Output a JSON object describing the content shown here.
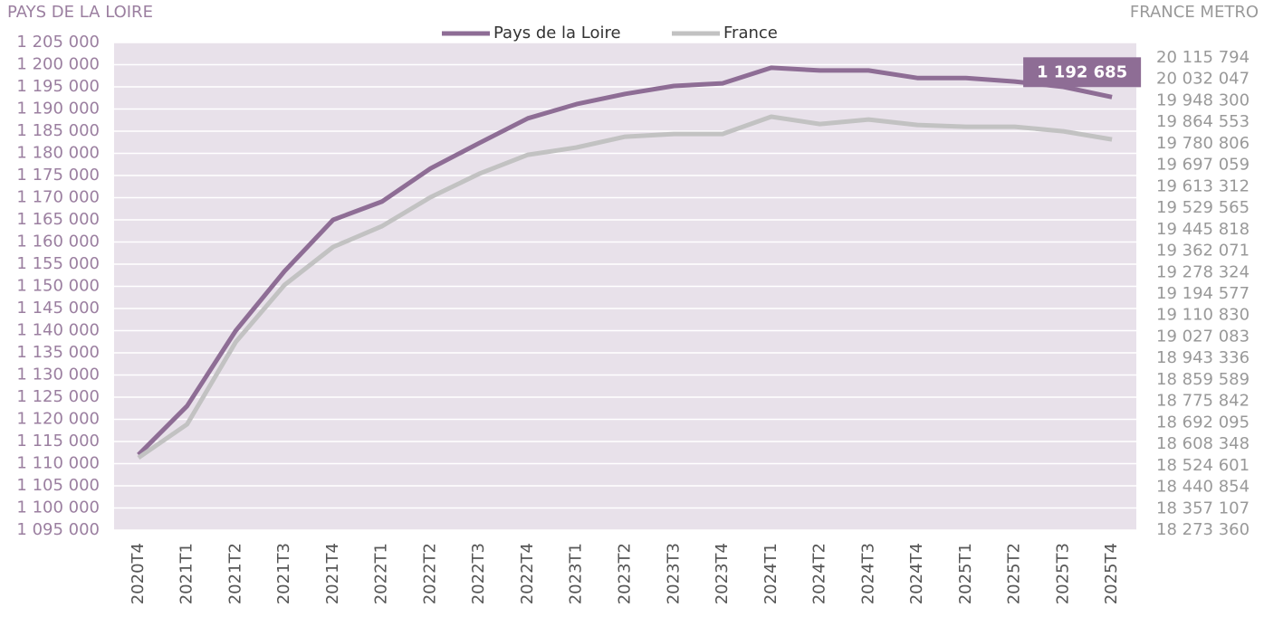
{
  "chart_data": {
    "type": "line",
    "y_label": "PAYS DE LA LOIRE",
    "y2_label": "FRANCE METRO",
    "categories": [
      "2020T4",
      "2021T1",
      "2021T2",
      "2021T3",
      "2021T4",
      "2022T1",
      "2022T2",
      "2022T3",
      "2022T4",
      "2023T1",
      "2023T2",
      "2023T3",
      "2023T4",
      "2024T1",
      "2024T2",
      "2024T3",
      "2024T4",
      "2025T1",
      "2025T2",
      "2025T3",
      "2025T4"
    ],
    "series": [
      {
        "name": "Pays de la Loire",
        "color": "#8e6d95",
        "axis": "y",
        "values": [
          1112000,
          1123000,
          1140000,
          1153400,
          1165000,
          1169100,
          1176600,
          1182300,
          1187900,
          1191100,
          1193400,
          1195200,
          1195800,
          1199300,
          1198700,
          1198700,
          1197000,
          1197000,
          1196200,
          1195000,
          1192685
        ],
        "value_labels": [
          null,
          null,
          null,
          null,
          null,
          null,
          null,
          null,
          null,
          null,
          null,
          null,
          null,
          null,
          null,
          null,
          null,
          null,
          null,
          null,
          "1 192 685"
        ]
      },
      {
        "name": "France",
        "color": "#c2c2c2",
        "axis": "y2",
        "values": [
          18555700,
          18686300,
          19007400,
          19229800,
          19378000,
          19459100,
          19572100,
          19663800,
          19737900,
          19766200,
          19808500,
          19819100,
          19819100,
          19886200,
          19857900,
          19875600,
          19854400,
          19847300,
          19847300,
          19829700,
          19797900
        ]
      }
    ],
    "ylim": [
      1095000,
      1205000
    ],
    "yticks": [
      {
        "value": 1095000,
        "label": "1 095 000"
      },
      {
        "value": 1100000,
        "label": "1 100 000"
      },
      {
        "value": 1105000,
        "label": "1 105 000"
      },
      {
        "value": 1110000,
        "label": "1 110 000"
      },
      {
        "value": 1115000,
        "label": "1 115 000"
      },
      {
        "value": 1120000,
        "label": "1 120 000"
      },
      {
        "value": 1125000,
        "label": "1 125 000"
      },
      {
        "value": 1130000,
        "label": "1 130 000"
      },
      {
        "value": 1135000,
        "label": "1 135 000"
      },
      {
        "value": 1140000,
        "label": "1 140 000"
      },
      {
        "value": 1145000,
        "label": "1 145 000"
      },
      {
        "value": 1150000,
        "label": "1 150 000"
      },
      {
        "value": 1155000,
        "label": "1 155 000"
      },
      {
        "value": 1160000,
        "label": "1 160 000"
      },
      {
        "value": 1165000,
        "label": "1 165 000"
      },
      {
        "value": 1170000,
        "label": "1 170 000"
      },
      {
        "value": 1175000,
        "label": "1 175 000"
      },
      {
        "value": 1180000,
        "label": "1 180 000"
      },
      {
        "value": 1185000,
        "label": "1 185 000"
      },
      {
        "value": 1190000,
        "label": "1 190 000"
      },
      {
        "value": 1195000,
        "label": "1 195 000"
      },
      {
        "value": 1200000,
        "label": "1 200 000"
      },
      {
        "value": 1205000,
        "label": "1 205 000"
      }
    ],
    "y2lim": [
      18273360,
      20175800
    ],
    "y2ticks": [
      {
        "value": 18273360,
        "label": "18 273 360"
      },
      {
        "value": 18357107,
        "label": "18 357 107"
      },
      {
        "value": 18440854,
        "label": "18 440 854"
      },
      {
        "value": 18524601,
        "label": "18 524 601"
      },
      {
        "value": 18608348,
        "label": "18 608 348"
      },
      {
        "value": 18692095,
        "label": "18 692 095"
      },
      {
        "value": 18775842,
        "label": "18 775 842"
      },
      {
        "value": 18859589,
        "label": "18 859 589"
      },
      {
        "value": 18943336,
        "label": "18 943 336"
      },
      {
        "value": 19027083,
        "label": "19 027 083"
      },
      {
        "value": 19110830,
        "label": "19 110 830"
      },
      {
        "value": 19194577,
        "label": "19 194 577"
      },
      {
        "value": 19278324,
        "label": "19 278 324"
      },
      {
        "value": 19362071,
        "label": "19 362 071"
      },
      {
        "value": 19445818,
        "label": "19 445 818"
      },
      {
        "value": 19529565,
        "label": "19 529 565"
      },
      {
        "value": 19613312,
        "label": "19 613 312"
      },
      {
        "value": 19697059,
        "label": "19 697 059"
      },
      {
        "value": 19780806,
        "label": "19 780 806"
      },
      {
        "value": 19864553,
        "label": "19 864 553"
      },
      {
        "value": 19948300,
        "label": "19 948 300"
      },
      {
        "value": 20032047,
        "label": "20 032 047"
      },
      {
        "value": 20115794,
        "label": "20 115 794"
      }
    ],
    "grid": true,
    "legend": "top",
    "background": "#e8e1ea"
  }
}
